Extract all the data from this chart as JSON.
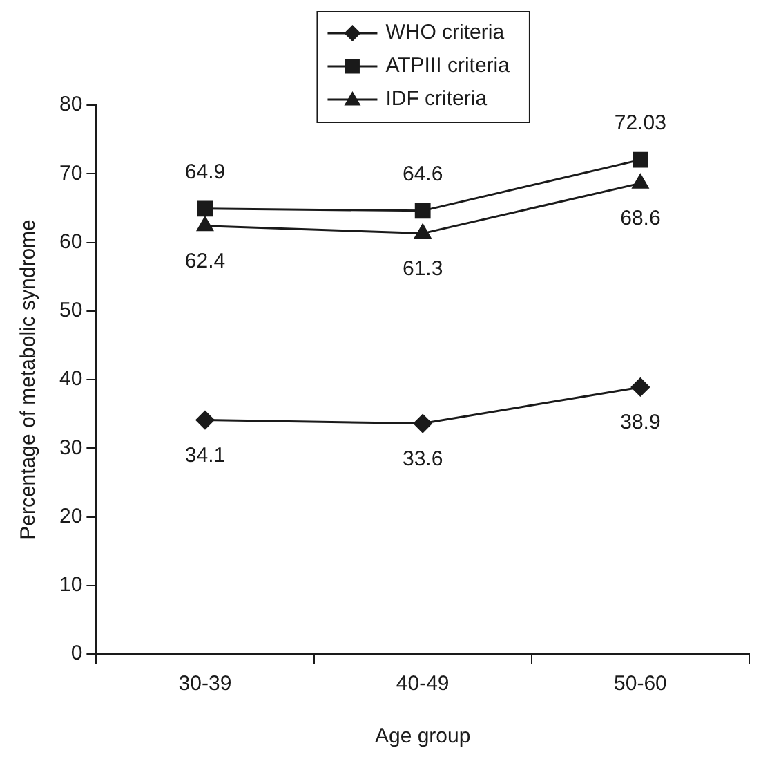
{
  "chart_data": {
    "type": "line",
    "xlabel": "Age group",
    "ylabel": "Percentage of metabolic syndrome",
    "categories": [
      "30-39",
      "40-49",
      "50-60"
    ],
    "series": [
      {
        "name": "WHO criteria",
        "color": "#1a1a1a",
        "marker": "diamond",
        "values": [
          34.1,
          33.6,
          38.9
        ]
      },
      {
        "name": "ATPIII criteria",
        "color": "#1a1a1a",
        "marker": "square",
        "values": [
          64.9,
          64.6,
          72.03
        ]
      },
      {
        "name": "IDF criteria",
        "color": "#1a1a1a",
        "marker": "triangle",
        "values": [
          62.4,
          61.3,
          68.6
        ]
      }
    ],
    "ylim": [
      0,
      80
    ],
    "yticks": [
      0,
      10,
      20,
      30,
      40,
      50,
      60,
      70,
      80
    ],
    "grid": false,
    "legend": "top",
    "data_labels": true,
    "line_style": "solid"
  }
}
